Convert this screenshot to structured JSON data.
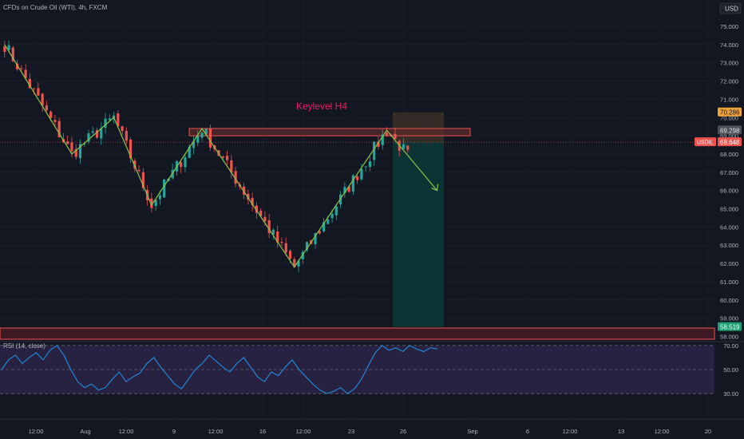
{
  "header": {
    "title": "CFDs on Crude Oil (WTI), 4h, FXCM",
    "currency": "USD"
  },
  "colors": {
    "background": "#131722",
    "up": "#26a69a",
    "down": "#ef5350",
    "zigzag": "#8bc34a",
    "annotation_text": "#e91e63",
    "rsi_line": "#2196f3",
    "rsi_band": "#2a2446"
  },
  "annotation": {
    "keylevel_label": "Keylevel H4"
  },
  "price_tags": {
    "target": "70.286",
    "last_high": "69.298",
    "symbol_label": "USDIL",
    "current": "68.648",
    "stop": "58.519"
  },
  "rsi_panel": {
    "label": "RSI (14, close)",
    "levels": [
      "70.00",
      "50.00",
      "30.00"
    ]
  },
  "chart_data": {
    "type": "candlestick",
    "title": "CFDs on Crude Oil (WTI), 4h, FXCM",
    "y_ticks": [
      "75.000",
      "74.000",
      "73.000",
      "72.000",
      "71.000",
      "70.000",
      "69.000",
      "68.000",
      "67.000",
      "66.000",
      "65.000",
      "64.000",
      "63.000",
      "62.000",
      "61.000",
      "60.000",
      "59.000",
      "58.000"
    ],
    "x_ticks": [
      "12:00",
      "Aug",
      "12:00",
      "9",
      "12:00",
      "16",
      "12:00",
      "23",
      "26",
      "Sep",
      "6",
      "12:00",
      "13",
      "12:00",
      "20"
    ],
    "ylim": [
      57.5,
      75.5
    ],
    "zigzag": [
      [
        0,
        74.0
      ],
      [
        16,
        68.0
      ],
      [
        26,
        70.0
      ],
      [
        35,
        65.2
      ],
      [
        47,
        69.4
      ],
      [
        69,
        61.8
      ],
      [
        91,
        69.3
      ],
      [
        103,
        66.0
      ]
    ],
    "key_level": [
      69.0,
      69.4
    ],
    "position": {
      "entry": 68.648,
      "target": 70.286,
      "stop": 58.519
    },
    "rsi_series": [
      50,
      58,
      62,
      55,
      60,
      64,
      58,
      66,
      70,
      62,
      50,
      40,
      35,
      38,
      33,
      35,
      42,
      48,
      40,
      44,
      47,
      55,
      60,
      52,
      45,
      38,
      34,
      42,
      50,
      55,
      62,
      57,
      52,
      48,
      55,
      60,
      52,
      44,
      40,
      48,
      45,
      52,
      58,
      50,
      44,
      38,
      33,
      30,
      32,
      35,
      30,
      34,
      42,
      53,
      64,
      70,
      66,
      68,
      65,
      70,
      67,
      65,
      68,
      67
    ]
  }
}
